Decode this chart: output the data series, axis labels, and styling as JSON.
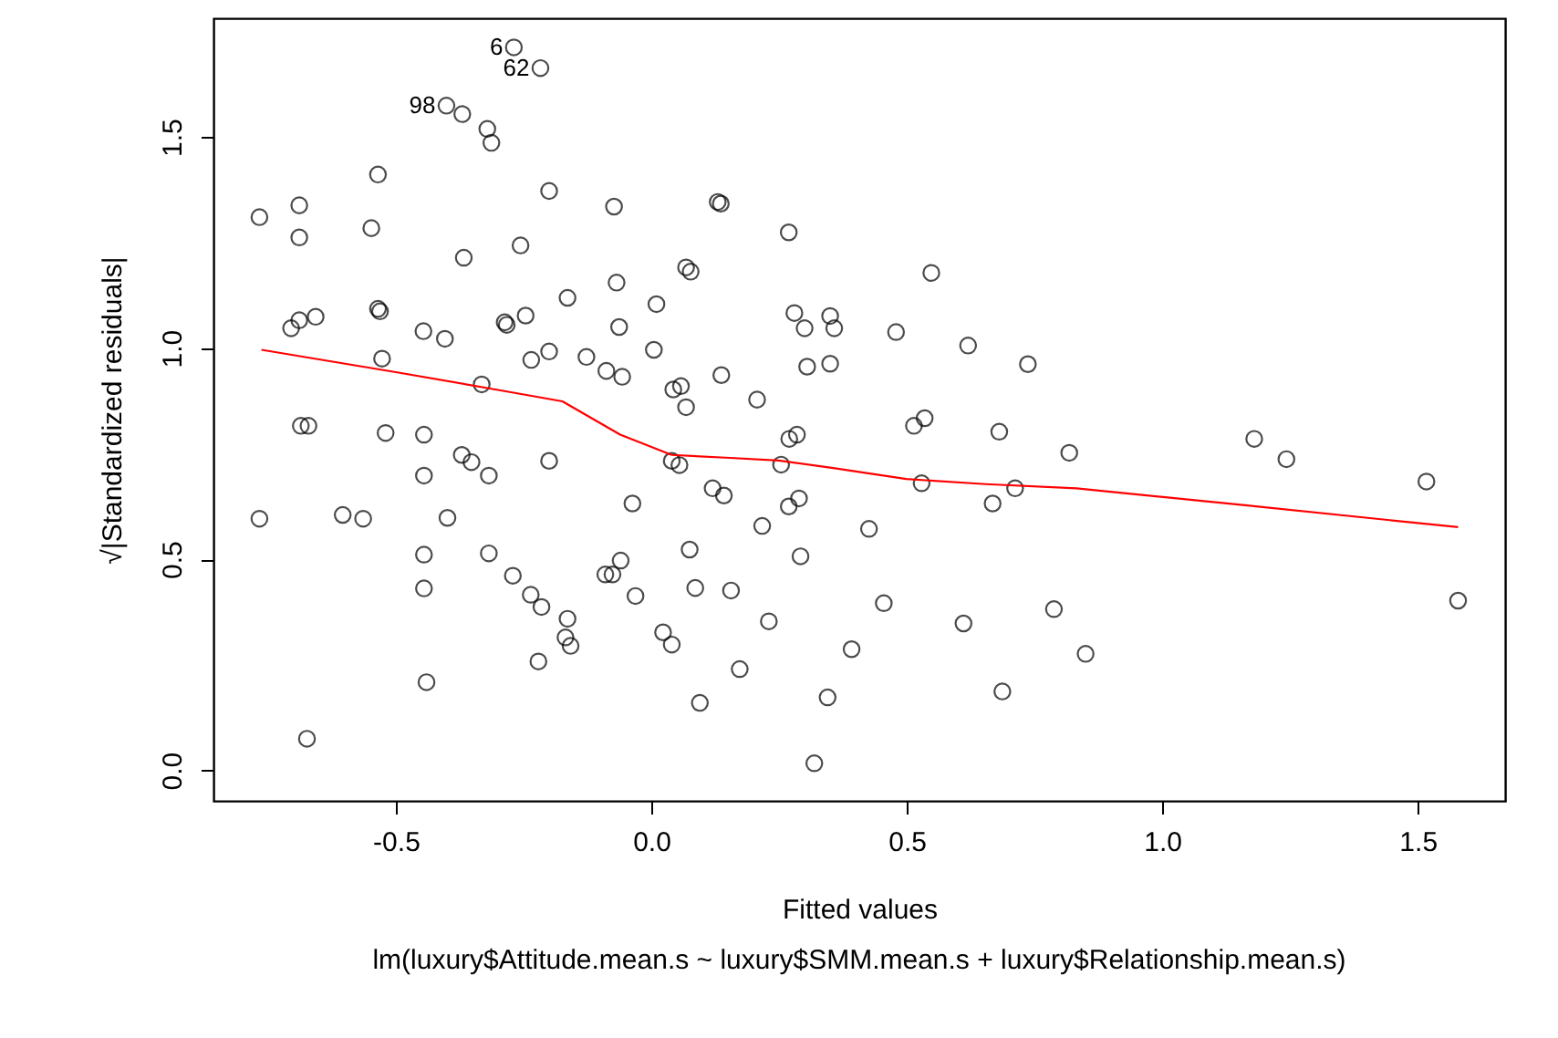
{
  "chart_data": {
    "type": "scatter",
    "xlabel": "Fitted values",
    "ylabel": "√|Standardized residuals|",
    "xlim": [
      -0.857,
      1.671
    ],
    "ylim": [
      -0.072,
      1.781
    ],
    "xticks": [
      -0.5,
      {
        "value": 0,
        "label": "0.0"
      },
      0.5,
      {
        "value": 1,
        "label": "1.0"
      },
      1.5
    ],
    "yticks": [
      {
        "value": 0,
        "label": "0.0"
      },
      0.5,
      {
        "value": 1,
        "label": "1.0"
      },
      1.5
    ],
    "grid": false,
    "marker": "circle",
    "series": [
      {
        "color": "#000000",
        "x": [
          -0.269,
          -0.217,
          -0.401,
          -0.37,
          -0.321,
          -0.313,
          -0.535,
          -0.689,
          -0.767,
          -0.689,
          -0.548,
          -0.2,
          -0.073,
          -0.256,
          -0.367,
          -0.068,
          -0.164,
          -0.246,
          -0.287,
          -0.283,
          -0.535,
          -0.531,
          -0.657,
          -0.689,
          -0.705,
          -0.063,
          -0.446,
          -0.404,
          -0.2,
          -0.235,
          -0.527,
          -0.127,
          -0.088,
          -0.057,
          -0.332,
          0.13,
          0.136,
          0.269,
          0.068,
          0.077,
          0.548,
          0.01,
          0.28,
          0.3,
          0.35,
          0.358,
          0.479,
          0.62,
          0.737,
          0.005,
          0.137,
          0.043,
          0.058,
          0.068,
          0.207,
          0.305,
          0.35,
          -0.686,
          -0.671,
          -0.52,
          -0.445,
          -0.371,
          -0.352,
          -0.318,
          -0.2,
          -0.445,
          -0.767,
          -0.604,
          -0.564,
          -0.399,
          -0.445,
          -0.318,
          -0.271,
          -0.236,
          -0.215,
          -0.164,
          -0.168,
          -0.158,
          -0.221,
          -0.445,
          -0.44,
          -0.674,
          -0.09,
          -0.076,
          0.514,
          0.535,
          0.681,
          0.818,
          0.27,
          0.285,
          0.04,
          0.055,
          0.254,
          0.529,
          0.712,
          0.668,
          -0.037,
          0.12,
          0.142,
          0.269,
          0.289,
          0.217,
          0.426,
          0.075,
          0.292,
          -0.06,
          0.086,
          0.156,
          -0.031,
          0.23,
          0.455,
          0.611,
          0.788,
          0.023,
          0.04,
          0.173,
          0.392,
          0.095,
          0.345,
          0.687,
          0.319,
          1.18,
          1.243,
          1.517,
          1.579,
          0.85
        ],
        "values": [
          1.712,
          1.663,
          1.574,
          1.554,
          1.519,
          1.486,
          1.411,
          1.338,
          1.31,
          1.262,
          1.284,
          1.372,
          1.335,
          1.243,
          1.214,
          1.155,
          1.119,
          1.077,
          1.061,
          1.055,
          1.093,
          1.087,
          1.074,
          1.066,
          1.047,
          1.05,
          1.04,
          1.022,
          0.992,
          0.972,
          0.975,
          0.979,
          0.946,
          0.932,
          0.914,
          1.346,
          1.342,
          1.274,
          1.191,
          1.181,
          1.178,
          1.104,
          1.083,
          1.047,
          1.076,
          1.047,
          1.038,
          1.006,
          0.962,
          0.996,
          0.936,
          0.902,
          0.91,
          0.86,
          0.878,
          0.956,
          0.963,
          0.816,
          0.816,
          0.799,
          0.795,
          0.747,
          0.73,
          0.698,
          0.733,
          0.698,
          0.596,
          0.605,
          0.596,
          0.598,
          0.511,
          0.514,
          0.461,
          0.416,
          0.387,
          0.359,
          0.315,
          0.295,
          0.258,
          0.431,
          0.209,
          0.075,
          0.464,
          0.464,
          0.816,
          0.834,
          0.802,
          0.752,
          0.785,
          0.795,
          0.733,
          0.723,
          0.724,
          0.68,
          0.668,
          0.632,
          0.632,
          0.668,
          0.651,
          0.625,
          0.644,
          0.579,
          0.572,
          0.523,
          0.507,
          0.497,
          0.432,
          0.426,
          0.413,
          0.353,
          0.396,
          0.348,
          0.382,
          0.327,
          0.298,
          0.24,
          0.287,
          0.16,
          0.173,
          0.187,
          0.017,
          0.785,
          0.737,
          0.684,
          0.402,
          0.276
        ]
      },
      {
        "type": "line",
        "color": "#ff0000",
        "marker": "none",
        "line_style": "solid",
        "x": [
          -0.763,
          -0.5,
          -0.3,
          -0.174,
          -0.061,
          0.04,
          0.154,
          0.249,
          0.356,
          0.499,
          0.654,
          0.832,
          1.153,
          1.579
        ],
        "values": [
          0.996,
          0.943,
          0.901,
          0.874,
          0.795,
          0.747,
          0.74,
          0.734,
          0.716,
          0.69,
          0.678,
          0.668,
          0.629,
          0.576
        ]
      }
    ],
    "annotations": [
      {
        "text": "6",
        "x": -0.269,
        "y": 1.712
      },
      {
        "text": "62",
        "x": -0.217,
        "y": 1.663
      },
      {
        "text": "98",
        "x": -0.401,
        "y": 1.574
      },
      "lm(luxury$Attitude.mean.s ~ luxury$SMM.mean.s + luxury$Relationship.mean.s)"
    ]
  }
}
